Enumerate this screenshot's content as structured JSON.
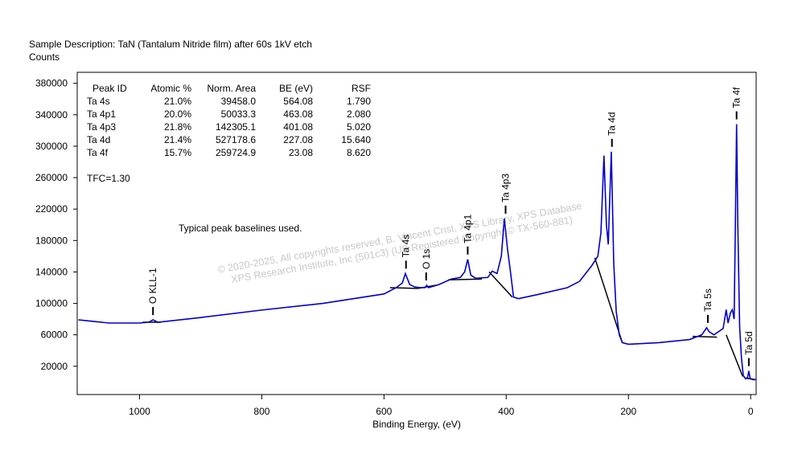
{
  "chart_data": {
    "type": "line",
    "title": "Sample Description:  TaN (Tantalum Nitride film) after 60s 1kV etch",
    "y_label": "Counts",
    "x_label": "Binding Energy, (eV)",
    "xlim": [
      1102,
      -9
    ],
    "ylim": [
      -16000,
      394000
    ],
    "xticks": [
      1000,
      800,
      600,
      400,
      200,
      0
    ],
    "yticks": [
      20000,
      60000,
      100000,
      140000,
      180000,
      220000,
      260000,
      300000,
      340000,
      380000
    ],
    "series": [
      {
        "color": "#0000cc",
        "x": [
          1100,
          1050,
          1000,
          985,
          978,
          970,
          900,
          800,
          700,
          600,
          580,
          570,
          565,
          558,
          550,
          540,
          533,
          530,
          527,
          510,
          490,
          475,
          468,
          463,
          458,
          450,
          430,
          423,
          415,
          408,
          403,
          398,
          393,
          388,
          380,
          350,
          300,
          280,
          260,
          250,
          245,
          240,
          236,
          233,
          228,
          224,
          220,
          215,
          210,
          200,
          150,
          100,
          80,
          72,
          68,
          60,
          45,
          40,
          37,
          33,
          30,
          27,
          25,
          23,
          21,
          18,
          15,
          12,
          8,
          5,
          3,
          1,
          -3,
          -8
        ],
        "values": [
          79000,
          75000,
          75000,
          76000,
          79000,
          76000,
          82000,
          91500,
          100000,
          112000,
          120000,
          126000,
          138000,
          124000,
          121000,
          120000,
          120000,
          123000,
          120000,
          124000,
          131000,
          133000,
          140000,
          156000,
          136000,
          132000,
          133000,
          141000,
          138000,
          160000,
          208000,
          170000,
          140000,
          108000,
          106000,
          111000,
          120000,
          128000,
          148000,
          160000,
          190000,
          288000,
          200000,
          175000,
          293000,
          150000,
          90000,
          60000,
          50000,
          48000,
          50000,
          54000,
          60000,
          69000,
          64000,
          60000,
          68000,
          92000,
          75000,
          88000,
          92000,
          80000,
          200000,
          328000,
          200000,
          70000,
          30000,
          8000,
          4000,
          6000,
          14000,
          5000,
          3000,
          3000
        ]
      }
    ],
    "baselines": {
      "color": "#000000",
      "lines": [
        {
          "x": [
            995,
            965
          ],
          "values": [
            76000,
            76000
          ]
        },
        {
          "x": [
            590,
            545
          ],
          "values": [
            120000,
            119000
          ]
        },
        {
          "x": [
            545,
            515
          ],
          "values": [
            119000,
            123000
          ]
        },
        {
          "x": [
            495,
            440
          ],
          "values": [
            130000,
            131000
          ]
        },
        {
          "x": [
            428,
            390
          ],
          "values": [
            140000,
            108000
          ]
        },
        {
          "x": [
            255,
            210
          ],
          "values": [
            158000,
            50000
          ]
        },
        {
          "x": [
            95,
            55
          ],
          "values": [
            58000,
            57000
          ]
        },
        {
          "x": [
            40,
            13
          ],
          "values": [
            60000,
            7000
          ]
        },
        {
          "x": [
            10,
            -8
          ],
          "values": [
            5000,
            3000
          ]
        }
      ]
    },
    "peak_labels": [
      {
        "text": "O KLL-1",
        "x": 978
      },
      {
        "text": "Ta 4s",
        "x": 564
      },
      {
        "text": "O 1s",
        "x": 531
      },
      {
        "text": "Ta 4p1",
        "x": 463
      },
      {
        "text": "Ta 4p3",
        "x": 401
      },
      {
        "text": "Ta 4d",
        "x": 227
      },
      {
        "text": "Ta 5s",
        "x": 70
      },
      {
        "text": "Ta 4f",
        "x": 23
      },
      {
        "text": "Ta 5d",
        "x": 3
      }
    ],
    "table": {
      "header": [
        "Peak ID",
        "Atomic %",
        "Norm. Area",
        "BE (eV)",
        "RSF"
      ],
      "rows": [
        [
          "Ta 4s",
          "21.0%",
          "39458.0",
          "564.08",
          "1.790"
        ],
        [
          "Ta 4p1",
          "20.0%",
          "50033.3",
          "463.08",
          "2.080"
        ],
        [
          "Ta 4p3",
          "21.8%",
          "142305.1",
          "401.08",
          "5.020"
        ],
        [
          "Ta 4d",
          "21.4%",
          "527178.6",
          "227.08",
          "15.640"
        ],
        [
          "Ta 4f",
          "15.7%",
          "259724.9",
          "23.08",
          "8.620"
        ]
      ]
    },
    "tfc": "TFC=1.30",
    "note": "Typical peak baselines used.",
    "watermark": [
      "©  2020-2025,  All copyrights reserved,    B. Vincent Crist,  XPS Library, XPS Database",
      "XPS Research Institute, Inc (501c3)   (US Registered Copyright © TX-560-881)"
    ]
  }
}
